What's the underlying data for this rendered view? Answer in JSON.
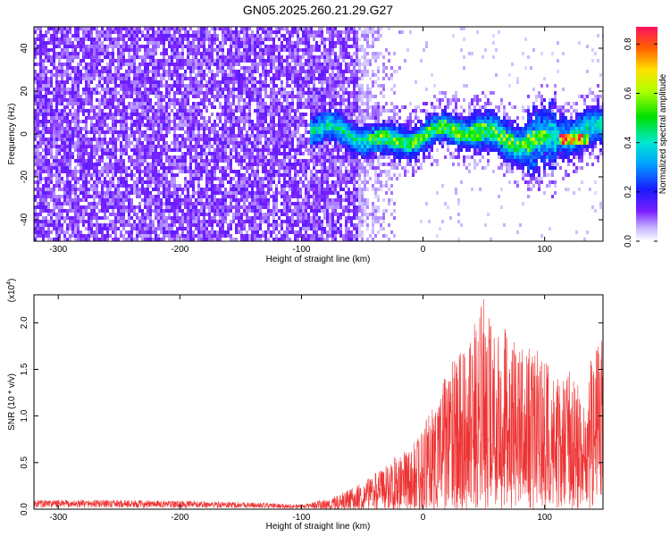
{
  "figure_title": "GN05.2025.260.21.29.G27",
  "chart_data": [
    {
      "type": "heatmap",
      "title": "GN05.2025.260.21.29.G27",
      "xlabel": "Height of straight line (km)",
      "ylabel": "Frequency (Hz)",
      "xlim": [
        -320,
        148
      ],
      "ylim": [
        -50,
        50
      ],
      "xticks": [
        -300,
        -200,
        -100,
        0,
        100
      ],
      "xtick_labels": [
        "-300",
        "-200",
        "-100",
        "0",
        "100"
      ],
      "yticks": [
        -40,
        -20,
        0,
        20,
        40
      ],
      "ytick_labels": [
        "-40",
        "-20",
        "0",
        "20",
        "40"
      ],
      "colorbar": {
        "label": "Normalized spectral amplitude",
        "range": [
          0.0,
          0.87
        ],
        "ticks": [
          0.0,
          0.2,
          0.4,
          0.6,
          0.8
        ],
        "tick_labels": [
          "0.0",
          "0.2",
          "0.4",
          "0.6",
          "0.8"
        ]
      },
      "regions": [
        {
          "x_range": [
            -320,
            -55
          ],
          "f_range": [
            -50,
            50
          ],
          "amplitude": 0.12,
          "description": "broadband noise"
        },
        {
          "x_range": [
            -55,
            -15
          ],
          "f_range": [
            -50,
            50
          ],
          "amplitude": 0.05,
          "description": "fading noise"
        },
        {
          "x_range": [
            -95,
            148
          ],
          "f_range": [
            -8,
            8
          ],
          "amplitude": 0.35,
          "description": "signal band near 0 Hz"
        },
        {
          "x_range": [
            110,
            135
          ],
          "f_range": [
            -3,
            1
          ],
          "amplitude": 0.7,
          "description": "strong signal"
        }
      ]
    },
    {
      "type": "line",
      "xlabel": "Height of straight line (km)",
      "ylabel": "SNR (10 * v/v)",
      "scale_label": "(x10",
      "scale_exponent": "4",
      "scale_close": ")",
      "xlim": [
        -320,
        148
      ],
      "ylim": [
        0,
        23000
      ],
      "xticks": [
        -300,
        -200,
        -100,
        0,
        100
      ],
      "xtick_labels": [
        "-300",
        "-200",
        "-100",
        "0",
        "100"
      ],
      "yticks": [
        0,
        5000,
        10000,
        15000,
        20000
      ],
      "ytick_labels": [
        "0.0",
        "0.5",
        "1.0",
        "1.5",
        "2.0"
      ],
      "series": [
        {
          "name": "SNR",
          "color": "#ee3333",
          "envelope_x": [
            -320,
            -250,
            -150,
            -100,
            -75,
            -55,
            -40,
            -25,
            -10,
            0,
            10,
            20,
            30,
            40,
            50,
            60,
            70,
            80,
            90,
            100,
            110,
            120,
            130,
            140,
            148
          ],
          "envelope_y": [
            1000,
            1000,
            800,
            500,
            1200,
            2500,
            3800,
            5500,
            6500,
            9000,
            12000,
            15000,
            17000,
            19000,
            23000,
            19000,
            20000,
            17000,
            18000,
            16000,
            14000,
            15000,
            13000,
            17000,
            19500
          ]
        }
      ]
    }
  ]
}
